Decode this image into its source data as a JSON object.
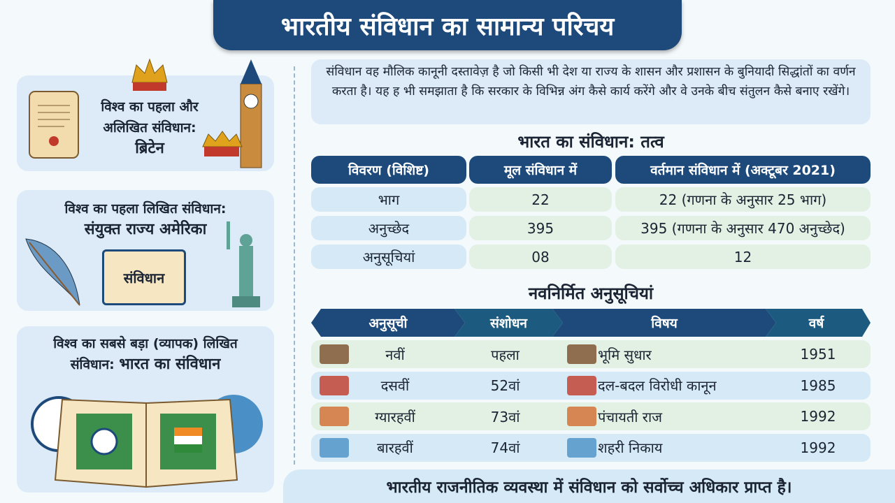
{
  "header": {
    "title": "भारतीय संविधान का सामान्य परिचय"
  },
  "left_cards": [
    {
      "lines": [
        "विश्व का पहला और",
        "अलिखित संविधान:"
      ],
      "highlight": "ब्रिटेन"
    },
    {
      "lines": [
        "विश्व का पहला लिखित संविधान:"
      ],
      "highlight": "संयुक्त राज्य अमेरिका",
      "book_label": "संविधान"
    },
    {
      "lines": [
        "विश्व का सबसे बड़ा (व्यापक) लिखित"
      ],
      "prefix": "संविधान:",
      "highlight": "भारत का संविधान"
    }
  ],
  "intro": {
    "text": "संविधान वह मौलिक कानूनी दस्तावेज़ है जो किसी भी देश या राज्य के शासन और प्रशासन के बुनियादी सिद्धांतों का वर्णन करता है। यह ह भी समझाता है कि सरकार के विभिन्न अंग कैसे कार्य करेंगे और वे उनके बीच संतुलन कैसे बनाए रखेंगे।"
  },
  "elements_table": {
    "title": "भारत का संविधान: तत्व",
    "headers": [
      "विवरण (विशिष्ट)",
      "मूल संविधान में",
      "वर्तमान संविधान में (अक्टूबर 2021)"
    ],
    "rows": [
      [
        "भाग",
        22,
        "22 (गणना के अनुसार 25 भाग)"
      ],
      [
        "अनुच्छेद",
        395,
        "395 (गणना के अनुसार 470 अनुच्छेद)"
      ],
      [
        "अनुसूचियां",
        "08",
        12
      ]
    ]
  },
  "schedules_table": {
    "title": "नवनिर्मित अनुसूचियां",
    "headers": [
      "अनुसूची",
      "संशोधन",
      "विषय",
      "वर्ष"
    ],
    "rows": [
      [
        "नवीं",
        "पहला",
        "भूमि सुधार",
        1951
      ],
      [
        "दसवीं",
        "52वां",
        "दल-बदल विरोधी कानून",
        1985
      ],
      [
        "ग्यारहवीं",
        "73वां",
        "पंचायती राज",
        1992
      ],
      [
        "बारहवीं",
        "74वां",
        "शहरी निकाय",
        1992
      ]
    ]
  },
  "footer": {
    "text": "भारतीय राजनीतिक व्यवस्था में संविधान को सर्वोच्च अधिकार प्राप्त है।"
  }
}
